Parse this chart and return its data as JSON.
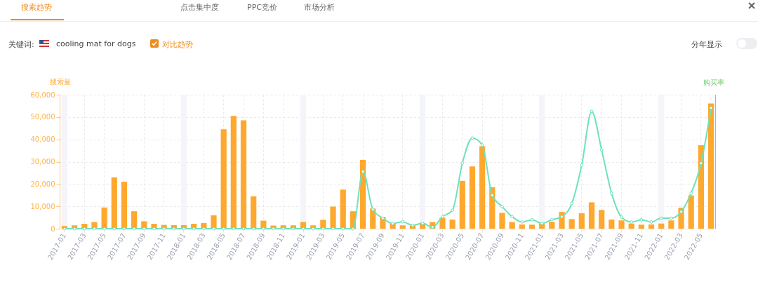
{
  "chart_data": {
    "type": "bar",
    "ylabel": "搜索量",
    "y2label": "购买率",
    "annotations": [
      "搜索趋势",
      "点击集中度",
      "PPC竞价",
      "市场分析",
      "关键词:",
      "cooling mat for dogs",
      "对比趋势",
      "分年显示"
    ],
    "categories": [
      "2017-01",
      null,
      "2017-03",
      null,
      "2017-05",
      null,
      "2017-07",
      null,
      "2017-09",
      null,
      "2017-11",
      null,
      "2018-01",
      null,
      "2018-03",
      null,
      "2018-05",
      null,
      "2018-07",
      null,
      "2018-09",
      null,
      "2018-11",
      null,
      "2019-01",
      null,
      "2019-03",
      null,
      "2019-05",
      null,
      "2019-07",
      null,
      "2019-09",
      null,
      "2019-11",
      null,
      "2020-01",
      null,
      "2020-03",
      null,
      "2020-05",
      null,
      "2020-07",
      null,
      "2020-09",
      null,
      "2020-11",
      null,
      "2021-01",
      null,
      "2021-03",
      null,
      "2021-05",
      null,
      "2021-07",
      null,
      "2021-09",
      null,
      "2021-11",
      null,
      "2022-01",
      null,
      "2022-03",
      null,
      "2022-05",
      null
    ],
    "series": [
      {
        "color": "#ffa82e",
        "values": [
          1200,
          1500,
          2200,
          3000,
          9500,
          23000,
          21000,
          7800,
          3300,
          2200,
          1700,
          1600,
          1600,
          2200,
          2500,
          6000,
          44500,
          50500,
          48500,
          14500,
          3600,
          1400,
          1500,
          1500,
          3000,
          1500,
          4000,
          9900,
          17500,
          7800,
          30800,
          9000,
          5300,
          2300,
          1500,
          1500,
          2300,
          3000,
          4900,
          4100,
          21400,
          27900,
          36900,
          18600,
          7100,
          3000,
          1900,
          1800,
          2300,
          3100,
          7500,
          4300,
          6900,
          11800,
          8400,
          4100,
          3700,
          2300,
          1800,
          1900,
          2300,
          3700,
          9400,
          14900,
          37400,
          56100
        ]
      },
      {
        "type": "line",
        "color": "#6ee2ba",
        "values": [
          0,
          0,
          0,
          0,
          0,
          0,
          0,
          0,
          0,
          0,
          0,
          0,
          0,
          0,
          0,
          0,
          0,
          0,
          0,
          0,
          0,
          0,
          0,
          0,
          0,
          0,
          0,
          0,
          0,
          0,
          25600,
          8600,
          4700,
          2300,
          3100,
          1500,
          2400,
          700,
          5400,
          8200,
          29400,
          40600,
          37500,
          15000,
          9900,
          5400,
          3000,
          4000,
          2400,
          4000,
          5400,
          11300,
          28500,
          52500,
          35300,
          15900,
          5200,
          3000,
          4000,
          3000,
          4700,
          4700,
          7600,
          15900,
          29300,
          54100
        ]
      }
    ],
    "ylim": [
      0,
      60000
    ],
    "yticks": [
      0,
      {
        "value": 10000,
        "label": "10,000"
      },
      {
        "value": 20000,
        "label": "20,000"
      },
      {
        "value": 30000,
        "label": "30,000"
      },
      {
        "value": 40000,
        "label": "40,000"
      },
      {
        "value": 50000,
        "label": "50,000"
      },
      {
        "value": 60000,
        "label": "60,000"
      }
    ],
    "bands": [
      {
        "axis": "x",
        "from": "2017-01",
        "to": "2017-01",
        "color": "#f3f5f9"
      },
      {
        "axis": "x",
        "from": "2018-01",
        "to": "2018-01",
        "color": "#f3f5f9"
      },
      {
        "axis": "x",
        "from": "2019-01",
        "to": "2019-01",
        "color": "#f3f5f9"
      },
      {
        "axis": "x",
        "from": "2020-01",
        "to": "2020-01",
        "color": "#f3f5f9"
      },
      {
        "axis": "x",
        "from": "2021-01",
        "to": "2021-01",
        "color": "#f3f5f9"
      },
      {
        "axis": "x",
        "from": "2022-01",
        "to": "2022-01",
        "color": "#f3f5f9"
      }
    ],
    "grid": true,
    "marker": "circle",
    "line_style": "solid"
  }
}
